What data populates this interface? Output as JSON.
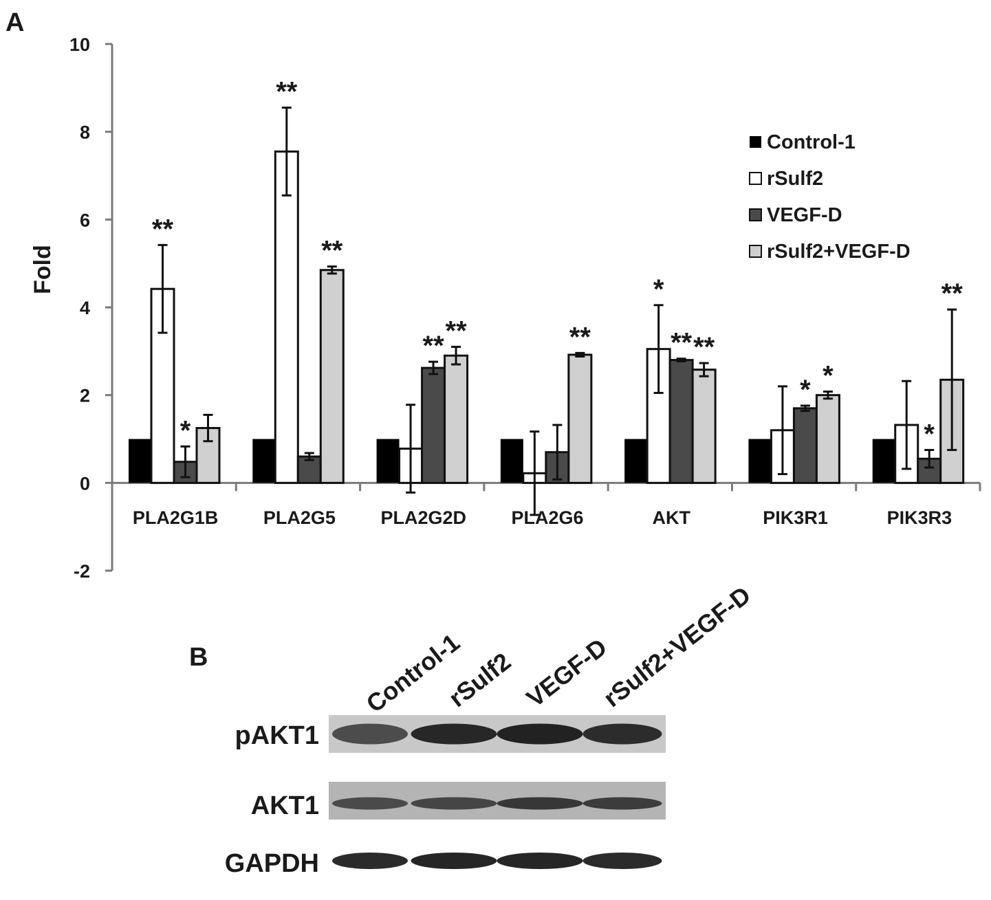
{
  "panel_a_label": "A",
  "panel_b_label": "B",
  "chart_data": {
    "type": "bar",
    "ylabel": "Fold",
    "xlabel": "",
    "ylim": [
      -2,
      10
    ],
    "yticks": [
      -2,
      0,
      2,
      4,
      6,
      8,
      10
    ],
    "grid": false,
    "legend_position": "top-right",
    "categories": [
      "PLA2G1B",
      "PLA2G5",
      "PLA2G2D",
      "PLA2G6",
      "AKT",
      "PIK3R1",
      "PIK3R3"
    ],
    "series": [
      {
        "name": "Control-1",
        "color": "#000000",
        "values": [
          1,
          1,
          1,
          1,
          1,
          1,
          1
        ],
        "errors": [
          0,
          0,
          0,
          0,
          0,
          0,
          0
        ],
        "significance": [
          "",
          "",
          "",
          "",
          "",
          "",
          ""
        ]
      },
      {
        "name": "rSulf2",
        "color": "#ffffff",
        "values": [
          4.42,
          7.55,
          0.78,
          0.22,
          3.05,
          1.2,
          1.32
        ],
        "errors": [
          1.0,
          1.0,
          1.0,
          0.95,
          1.0,
          1.0,
          1.0
        ],
        "significance": [
          "**",
          "**",
          "",
          "",
          "*",
          "",
          ""
        ]
      },
      {
        "name": "VEGF-D",
        "color": "#4a4a4a",
        "values": [
          0.48,
          0.6,
          2.62,
          0.7,
          2.8,
          1.7,
          0.55
        ],
        "errors": [
          0.35,
          0.08,
          0.14,
          0.62,
          0.03,
          0.06,
          0.2
        ],
        "significance": [
          "*",
          "",
          "**",
          "",
          "**",
          "*",
          "*"
        ]
      },
      {
        "name": "rSulf2+VEGF-D",
        "color": "#d0d0d0",
        "values": [
          1.25,
          4.85,
          2.9,
          2.92,
          2.58,
          2.0,
          2.35
        ],
        "errors": [
          0.3,
          0.08,
          0.2,
          0.04,
          0.15,
          0.08,
          1.6
        ],
        "significance": [
          "",
          "**",
          "**",
          "**",
          "**",
          "*",
          "**"
        ]
      }
    ]
  },
  "blot": {
    "lanes": [
      "Control-1",
      "rSulf2",
      "VEGF-D",
      "rSulf2+VEGF-D"
    ],
    "rows": [
      {
        "label": "pAKT1",
        "band_intensity": [
          0.55,
          0.95,
          1.0,
          0.9
        ],
        "background": "#c8c8c8"
      },
      {
        "label": "AKT1",
        "band_intensity": [
          0.55,
          0.6,
          0.75,
          0.7
        ],
        "background": "#b4b4b4"
      },
      {
        "label": "GAPDH",
        "band_intensity": [
          0.95,
          1.0,
          1.0,
          0.95
        ],
        "background": "#ffffff"
      }
    ]
  }
}
